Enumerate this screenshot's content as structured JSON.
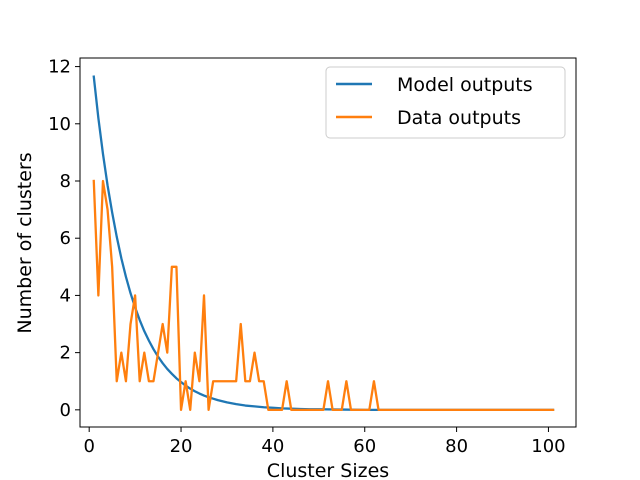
{
  "chart_data": {
    "type": "line",
    "xlabel": "Cluster Sizes",
    "ylabel": "Number of clusters",
    "xlim": [
      -2,
      106
    ],
    "ylim": [
      -0.6,
      12.3
    ],
    "xticks": [
      0,
      20,
      40,
      60,
      80,
      100
    ],
    "yticks": [
      0,
      2,
      4,
      6,
      8,
      10,
      12
    ],
    "grid": false,
    "legend_position": "top-right",
    "series": [
      {
        "name": "Model outputs",
        "color": "#1f77b4",
        "x": [
          1,
          2,
          3,
          4,
          5,
          6,
          7,
          8,
          9,
          10,
          11,
          12,
          13,
          14,
          15,
          16,
          17,
          18,
          19,
          20,
          21,
          22,
          23,
          24,
          25,
          26,
          27,
          28,
          29,
          30,
          32,
          34,
          36,
          38,
          40,
          42,
          44,
          46,
          48,
          50,
          55,
          60,
          65,
          70,
          80,
          90,
          101
        ],
        "y": [
          11.65,
          10.2,
          8.95,
          7.85,
          6.9,
          6.05,
          5.3,
          4.65,
          4.08,
          3.58,
          3.14,
          2.75,
          2.42,
          2.12,
          1.86,
          1.63,
          1.43,
          1.26,
          1.1,
          0.97,
          0.85,
          0.74,
          0.65,
          0.57,
          0.5,
          0.44,
          0.39,
          0.34,
          0.3,
          0.26,
          0.2,
          0.15,
          0.12,
          0.09,
          0.07,
          0.05,
          0.04,
          0.03,
          0.02,
          0.02,
          0.01,
          0.0,
          0.0,
          0.0,
          0.0,
          0.0,
          0.0
        ]
      },
      {
        "name": "Data outputs",
        "color": "#ff7f0e",
        "x": [
          1,
          2,
          3,
          4,
          5,
          6,
          7,
          8,
          9,
          10,
          11,
          12,
          13,
          14,
          15,
          16,
          17,
          18,
          19,
          20,
          21,
          22,
          23,
          24,
          25,
          26,
          27,
          28,
          29,
          30,
          31,
          32,
          33,
          34,
          35,
          36,
          37,
          38,
          39,
          40,
          41,
          42,
          43,
          44,
          45,
          46,
          47,
          48,
          49,
          50,
          51,
          52,
          53,
          54,
          55,
          56,
          57,
          58,
          59,
          60,
          61,
          62,
          63,
          64,
          65,
          70,
          80,
          90,
          101
        ],
        "y": [
          8,
          4,
          8,
          7,
          5,
          1,
          2,
          1,
          3,
          4,
          1,
          2,
          1,
          1,
          2,
          3,
          2,
          5,
          5,
          0,
          1,
          0,
          2,
          1,
          4,
          0,
          1,
          1,
          1,
          1,
          1,
          1,
          3,
          1,
          1,
          2,
          1,
          1,
          0,
          0,
          0,
          0,
          1,
          0,
          0,
          0,
          0,
          0,
          0,
          0,
          0,
          1,
          0,
          0,
          0,
          1,
          0,
          0,
          0,
          0,
          0,
          1,
          0,
          0,
          0,
          0,
          0,
          0,
          0
        ]
      }
    ]
  }
}
